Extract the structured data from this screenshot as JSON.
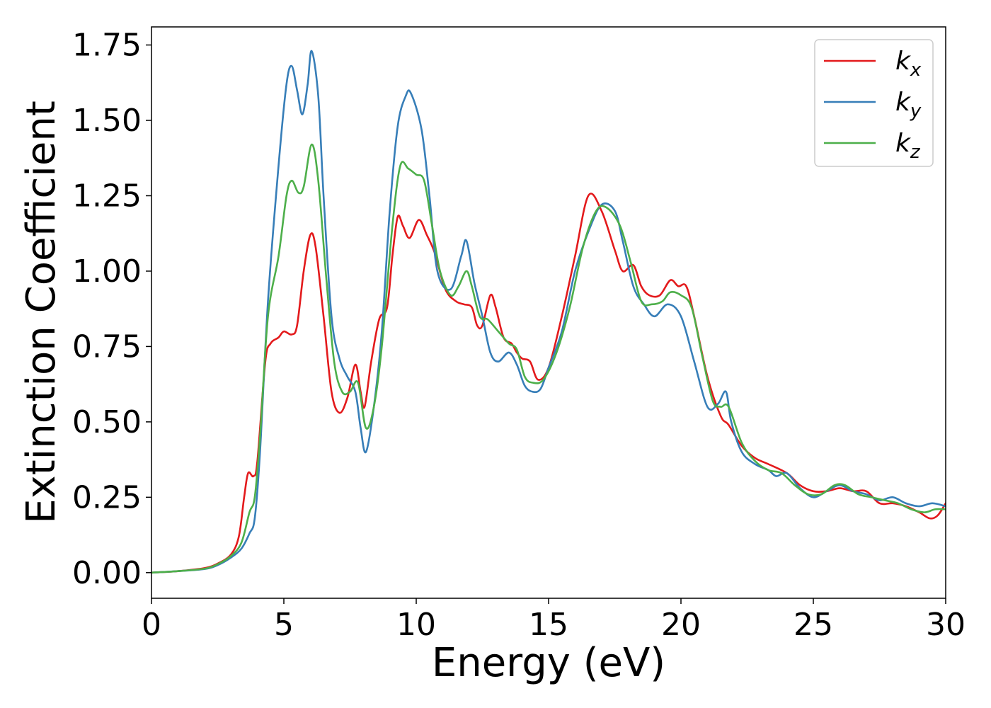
{
  "chart_data": {
    "type": "line",
    "xlabel": "Energy (eV)",
    "ylabel": "Extinction Coefficient",
    "xlim": [
      0,
      30
    ],
    "ylim": [
      -0.085,
      1.81
    ],
    "xticks": [
      0,
      5,
      10,
      15,
      20,
      25,
      30
    ],
    "yticks": [
      0.0,
      0.25,
      0.5,
      0.75,
      1.0,
      1.25,
      1.5,
      1.75
    ],
    "xtick_labels": [
      "0",
      "5",
      "10",
      "15",
      "20",
      "25",
      "30"
    ],
    "ytick_labels": [
      "0.00",
      "0.25",
      "0.50",
      "0.75",
      "1.00",
      "1.25",
      "1.50",
      "1.75"
    ],
    "grid": false,
    "legend_position": "top-right",
    "series": [
      {
        "name": "k_x",
        "label_main": "k",
        "label_sub": "x",
        "color": "#e31a1c",
        "points": [
          [
            0,
            0
          ],
          [
            1,
            0.005
          ],
          [
            2,
            0.015
          ],
          [
            2.5,
            0.03
          ],
          [
            3,
            0.06
          ],
          [
            3.3,
            0.12
          ],
          [
            3.5,
            0.25
          ],
          [
            3.65,
            0.33
          ],
          [
            3.85,
            0.32
          ],
          [
            4,
            0.37
          ],
          [
            4.3,
            0.7
          ],
          [
            4.5,
            0.76
          ],
          [
            4.8,
            0.78
          ],
          [
            5,
            0.8
          ],
          [
            5.3,
            0.79
          ],
          [
            5.5,
            0.82
          ],
          [
            5.75,
            1.0
          ],
          [
            6,
            1.12
          ],
          [
            6.2,
            1.08
          ],
          [
            6.5,
            0.85
          ],
          [
            6.8,
            0.6
          ],
          [
            7.1,
            0.53
          ],
          [
            7.4,
            0.58
          ],
          [
            7.7,
            0.69
          ],
          [
            7.9,
            0.6
          ],
          [
            8.05,
            0.55
          ],
          [
            8.3,
            0.7
          ],
          [
            8.6,
            0.84
          ],
          [
            8.9,
            0.88
          ],
          [
            9.1,
            1.05
          ],
          [
            9.3,
            1.18
          ],
          [
            9.5,
            1.15
          ],
          [
            9.75,
            1.11
          ],
          [
            10.1,
            1.17
          ],
          [
            10.4,
            1.12
          ],
          [
            10.7,
            1.06
          ],
          [
            11.1,
            0.94
          ],
          [
            11.5,
            0.9
          ],
          [
            11.8,
            0.89
          ],
          [
            12.1,
            0.88
          ],
          [
            12.3,
            0.82
          ],
          [
            12.5,
            0.82
          ],
          [
            12.8,
            0.92
          ],
          [
            13,
            0.88
          ],
          [
            13.3,
            0.78
          ],
          [
            13.6,
            0.76
          ],
          [
            13.8,
            0.73
          ],
          [
            14,
            0.71
          ],
          [
            14.3,
            0.7
          ],
          [
            14.6,
            0.64
          ],
          [
            15,
            0.68
          ],
          [
            15.5,
            0.85
          ],
          [
            16,
            1.05
          ],
          [
            16.5,
            1.25
          ],
          [
            17,
            1.2
          ],
          [
            17.5,
            1.07
          ],
          [
            17.8,
            1.0
          ],
          [
            18.2,
            1.02
          ],
          [
            18.5,
            0.95
          ],
          [
            18.8,
            0.92
          ],
          [
            19.2,
            0.92
          ],
          [
            19.6,
            0.97
          ],
          [
            19.9,
            0.95
          ],
          [
            20.2,
            0.95
          ],
          [
            20.5,
            0.85
          ],
          [
            21,
            0.65
          ],
          [
            21.5,
            0.52
          ],
          [
            21.8,
            0.49
          ],
          [
            22.3,
            0.42
          ],
          [
            22.8,
            0.38
          ],
          [
            23.3,
            0.36
          ],
          [
            24,
            0.33
          ],
          [
            24.5,
            0.29
          ],
          [
            25,
            0.27
          ],
          [
            25.5,
            0.27
          ],
          [
            26,
            0.28
          ],
          [
            26.5,
            0.27
          ],
          [
            27,
            0.27
          ],
          [
            27.5,
            0.23
          ],
          [
            28,
            0.23
          ],
          [
            28.5,
            0.22
          ],
          [
            29,
            0.2
          ],
          [
            29.4,
            0.18
          ],
          [
            29.7,
            0.19
          ],
          [
            30,
            0.23
          ]
        ]
      },
      {
        "name": "k_y",
        "label_main": "k",
        "label_sub": "y",
        "color": "#377eb8",
        "points": [
          [
            0,
            0
          ],
          [
            1,
            0.005
          ],
          [
            2,
            0.012
          ],
          [
            2.5,
            0.025
          ],
          [
            3,
            0.05
          ],
          [
            3.4,
            0.08
          ],
          [
            3.7,
            0.13
          ],
          [
            3.9,
            0.18
          ],
          [
            4.1,
            0.4
          ],
          [
            4.4,
            0.9
          ],
          [
            4.8,
            1.35
          ],
          [
            5.1,
            1.62
          ],
          [
            5.3,
            1.68
          ],
          [
            5.5,
            1.6
          ],
          [
            5.7,
            1.52
          ],
          [
            5.9,
            1.62
          ],
          [
            6.05,
            1.73
          ],
          [
            6.3,
            1.58
          ],
          [
            6.5,
            1.25
          ],
          [
            6.8,
            0.85
          ],
          [
            7.1,
            0.71
          ],
          [
            7.4,
            0.65
          ],
          [
            7.7,
            0.6
          ],
          [
            7.9,
            0.48
          ],
          [
            8.1,
            0.4
          ],
          [
            8.4,
            0.55
          ],
          [
            8.7,
            0.8
          ],
          [
            9,
            1.2
          ],
          [
            9.3,
            1.48
          ],
          [
            9.6,
            1.58
          ],
          [
            9.8,
            1.59
          ],
          [
            10.2,
            1.47
          ],
          [
            10.5,
            1.25
          ],
          [
            10.8,
            1.0
          ],
          [
            11.3,
            0.94
          ],
          [
            11.7,
            1.05
          ],
          [
            11.9,
            1.1
          ],
          [
            12.2,
            0.96
          ],
          [
            12.5,
            0.85
          ],
          [
            12.8,
            0.73
          ],
          [
            13.1,
            0.7
          ],
          [
            13.5,
            0.73
          ],
          [
            13.8,
            0.69
          ],
          [
            14.1,
            0.62
          ],
          [
            14.4,
            0.6
          ],
          [
            14.7,
            0.61
          ],
          [
            15,
            0.68
          ],
          [
            15.5,
            0.8
          ],
          [
            16,
            1.0
          ],
          [
            16.5,
            1.13
          ],
          [
            17,
            1.22
          ],
          [
            17.5,
            1.2
          ],
          [
            17.8,
            1.1
          ],
          [
            18.2,
            0.95
          ],
          [
            18.6,
            0.89
          ],
          [
            19,
            0.85
          ],
          [
            19.5,
            0.89
          ],
          [
            20,
            0.85
          ],
          [
            20.5,
            0.7
          ],
          [
            21,
            0.55
          ],
          [
            21.4,
            0.56
          ],
          [
            21.7,
            0.6
          ],
          [
            21.9,
            0.5
          ],
          [
            22.3,
            0.4
          ],
          [
            22.8,
            0.36
          ],
          [
            23.3,
            0.34
          ],
          [
            23.6,
            0.32
          ],
          [
            24,
            0.33
          ],
          [
            24.5,
            0.28
          ],
          [
            25,
            0.25
          ],
          [
            25.5,
            0.27
          ],
          [
            26,
            0.29
          ],
          [
            26.5,
            0.27
          ],
          [
            27,
            0.26
          ],
          [
            27.5,
            0.24
          ],
          [
            28,
            0.25
          ],
          [
            28.5,
            0.23
          ],
          [
            29,
            0.22
          ],
          [
            29.5,
            0.23
          ],
          [
            30,
            0.22
          ]
        ]
      },
      {
        "name": "k_z",
        "label_main": "k",
        "label_sub": "z",
        "color": "#4daf4a",
        "points": [
          [
            0,
            0
          ],
          [
            1,
            0.005
          ],
          [
            2,
            0.013
          ],
          [
            2.5,
            0.028
          ],
          [
            3,
            0.055
          ],
          [
            3.4,
            0.1
          ],
          [
            3.7,
            0.2
          ],
          [
            3.9,
            0.25
          ],
          [
            4.1,
            0.45
          ],
          [
            4.4,
            0.85
          ],
          [
            4.8,
            1.05
          ],
          [
            5.1,
            1.25
          ],
          [
            5.3,
            1.3
          ],
          [
            5.55,
            1.26
          ],
          [
            5.75,
            1.28
          ],
          [
            6.05,
            1.42
          ],
          [
            6.3,
            1.3
          ],
          [
            6.6,
            0.98
          ],
          [
            6.9,
            0.7
          ],
          [
            7.2,
            0.6
          ],
          [
            7.5,
            0.6
          ],
          [
            7.8,
            0.63
          ],
          [
            8.1,
            0.48
          ],
          [
            8.4,
            0.55
          ],
          [
            8.7,
            0.75
          ],
          [
            9.1,
            1.15
          ],
          [
            9.4,
            1.35
          ],
          [
            9.7,
            1.34
          ],
          [
            10,
            1.32
          ],
          [
            10.3,
            1.3
          ],
          [
            10.6,
            1.15
          ],
          [
            10.9,
            1.0
          ],
          [
            11.3,
            0.92
          ],
          [
            11.6,
            0.95
          ],
          [
            11.9,
            1.0
          ],
          [
            12.1,
            0.95
          ],
          [
            12.4,
            0.85
          ],
          [
            12.7,
            0.84
          ],
          [
            13.1,
            0.8
          ],
          [
            13.5,
            0.76
          ],
          [
            13.8,
            0.74
          ],
          [
            14.1,
            0.65
          ],
          [
            14.4,
            0.63
          ],
          [
            14.8,
            0.64
          ],
          [
            15.3,
            0.73
          ],
          [
            15.8,
            0.88
          ],
          [
            16.3,
            1.08
          ],
          [
            16.8,
            1.2
          ],
          [
            17.2,
            1.21
          ],
          [
            17.7,
            1.15
          ],
          [
            18.1,
            1.03
          ],
          [
            18.5,
            0.9
          ],
          [
            18.9,
            0.89
          ],
          [
            19.3,
            0.9
          ],
          [
            19.6,
            0.93
          ],
          [
            20,
            0.92
          ],
          [
            20.4,
            0.88
          ],
          [
            20.8,
            0.72
          ],
          [
            21.2,
            0.57
          ],
          [
            21.5,
            0.55
          ],
          [
            21.8,
            0.55
          ],
          [
            22.3,
            0.43
          ],
          [
            22.8,
            0.37
          ],
          [
            23.3,
            0.34
          ],
          [
            23.8,
            0.33
          ],
          [
            24.3,
            0.29
          ],
          [
            24.8,
            0.26
          ],
          [
            25.3,
            0.26
          ],
          [
            25.8,
            0.29
          ],
          [
            26.2,
            0.29
          ],
          [
            26.7,
            0.26
          ],
          [
            27.2,
            0.25
          ],
          [
            27.7,
            0.24
          ],
          [
            28.2,
            0.23
          ],
          [
            28.7,
            0.21
          ],
          [
            29.2,
            0.2
          ],
          [
            29.6,
            0.21
          ],
          [
            30,
            0.21
          ]
        ]
      }
    ]
  }
}
